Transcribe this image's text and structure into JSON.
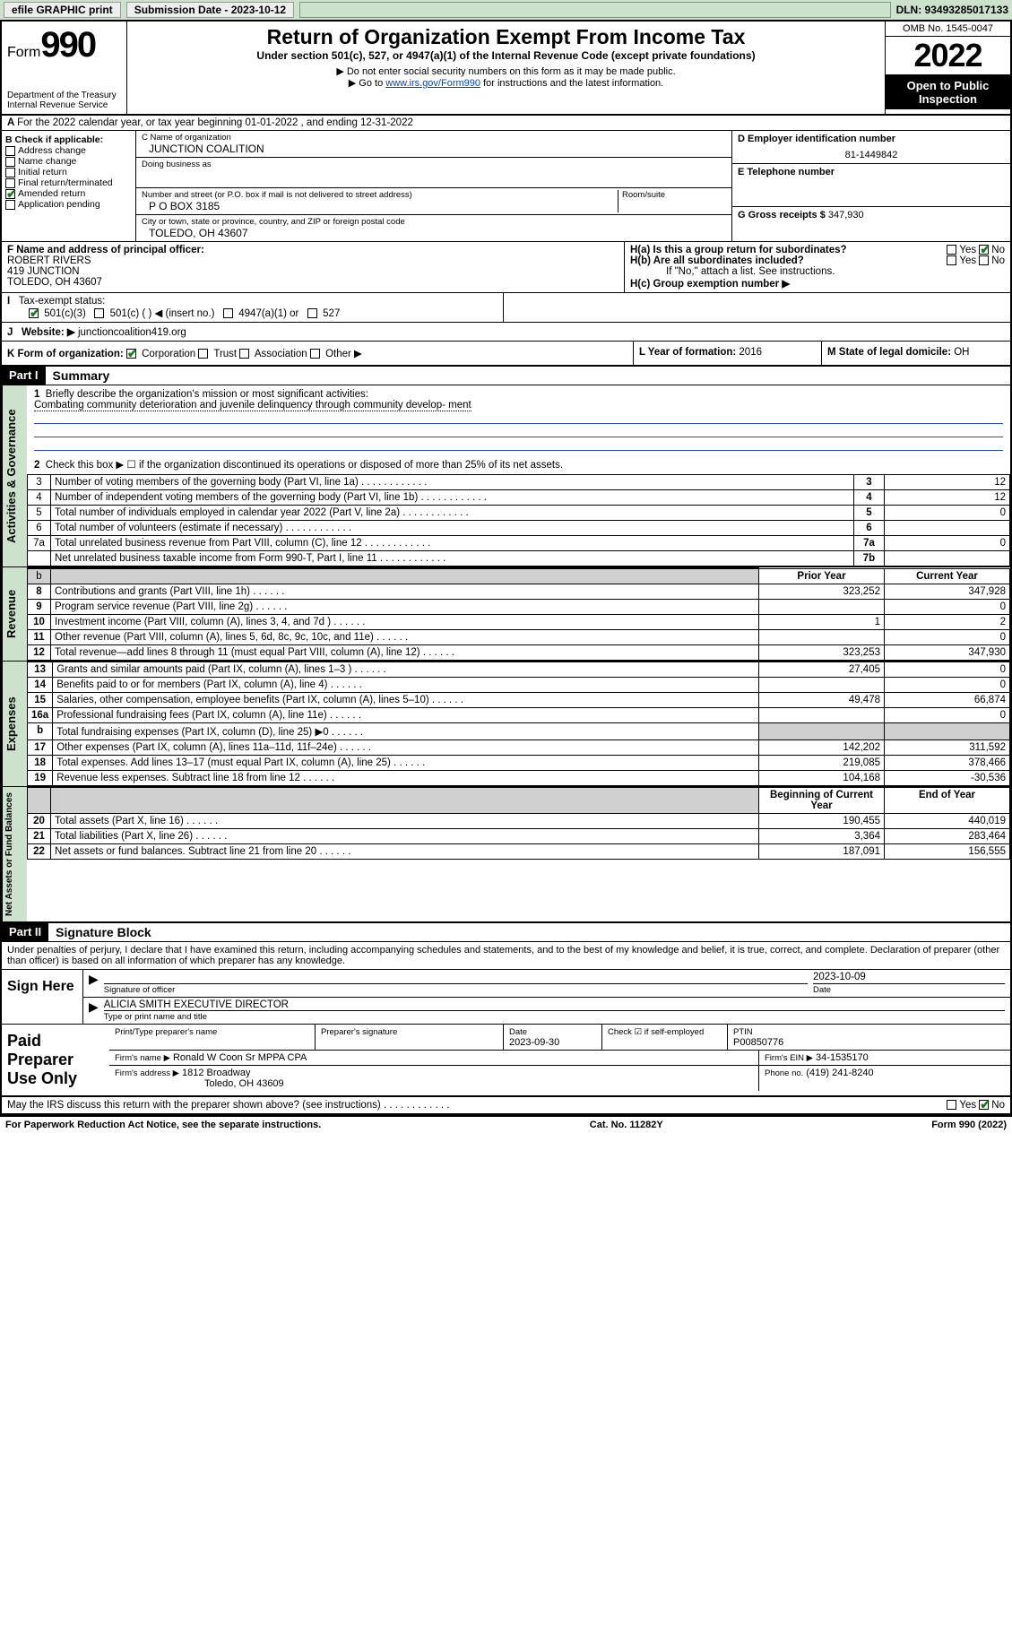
{
  "topbar": {
    "efile": "efile GRAPHIC print",
    "subdate_label": "Submission Date - 2023-10-12",
    "dln": "DLN: 93493285017133"
  },
  "header": {
    "form_word": "Form",
    "form_num": "990",
    "dept1": "Department of the Treasury",
    "dept2": "Internal Revenue Service",
    "title": "Return of Organization Exempt From Income Tax",
    "subtitle": "Under section 501(c), 527, or 4947(a)(1) of the Internal Revenue Code (except private foundations)",
    "instr1": "▶ Do not enter social security numbers on this form as it may be made public.",
    "instr2a": "▶ Go to ",
    "instr2_link": "www.irs.gov/Form990",
    "instr2b": " for instructions and the latest information.",
    "omb": "OMB No. 1545-0047",
    "year": "2022",
    "open": "Open to Public Inspection"
  },
  "A": {
    "text": "For the 2022 calendar year, or tax year beginning 01-01-2022  , and ending 12-31-2022"
  },
  "B": {
    "label": "B Check if applicable:",
    "items": [
      "Address change",
      "Name change",
      "Initial return",
      "Final return/terminated",
      "Amended return",
      "Application pending"
    ],
    "checked_idx": 4
  },
  "C": {
    "name_label": "C Name of organization",
    "name": "JUNCTION COALITION",
    "dba_label": "Doing business as",
    "dba": "",
    "street_label": "Number and street (or P.O. box if mail is not delivered to street address)",
    "room_label": "Room/suite",
    "street": "P O BOX 3185",
    "city_label": "City or town, state or province, country, and ZIP or foreign postal code",
    "city": "TOLEDO, OH  43607"
  },
  "D": {
    "label": "D Employer identification number",
    "val": "81-1449842"
  },
  "E": {
    "label": "E Telephone number",
    "val": ""
  },
  "G": {
    "label": "G Gross receipts $",
    "val": "347,930"
  },
  "F": {
    "label": "F Name and address of principal officer:",
    "l1": "ROBERT RIVERS",
    "l2": "419 JUNCTION",
    "l3": "TOLEDO, OH  43607"
  },
  "H": {
    "a": "H(a)  Is this a group return for subordinates?",
    "a_no": true,
    "b": "H(b)  Are all subordinates included?",
    "b_note": "If \"No,\" attach a list. See instructions.",
    "c": "H(c)  Group exemption number ▶"
  },
  "I": {
    "label": "Tax-exempt status:",
    "opts": [
      "501(c)(3)",
      "501(c) (  ) ◀ (insert no.)",
      "4947(a)(1) or",
      "527"
    ],
    "checked_idx": 0
  },
  "J": {
    "label": "Website: ▶",
    "val": "junctioncoalition419.org"
  },
  "K": {
    "label": "K Form of organization:",
    "opts": [
      "Corporation",
      "Trust",
      "Association",
      "Other ▶"
    ],
    "checked_idx": 0
  },
  "L": {
    "label": "L Year of formation: ",
    "val": "2016"
  },
  "M": {
    "label": "M State of legal domicile: ",
    "val": "OH"
  },
  "partI": {
    "hdr": "Part I",
    "title": "Summary",
    "q1": "Briefly describe the organization's mission or most significant activities:",
    "mission": "Combating community deterioration and juvenile delinquency through community develop- ment",
    "q2": "Check this box ▶ ☐  if the organization discontinued its operations or disposed of more than 25% of its net assets.",
    "side_gov": "Activities & Governance",
    "side_rev": "Revenue",
    "side_exp": "Expenses",
    "side_net": "Net Assets or Fund Balances",
    "col_prior": "Prior Year",
    "col_curr": "Current Year",
    "col_beg": "Beginning of Current Year",
    "col_end": "End of Year",
    "rows_gov": [
      {
        "n": "3",
        "d": "Number of voting members of the governing body (Part VI, line 1a)",
        "rn": "3",
        "v": "12"
      },
      {
        "n": "4",
        "d": "Number of independent voting members of the governing body (Part VI, line 1b)",
        "rn": "4",
        "v": "12"
      },
      {
        "n": "5",
        "d": "Total number of individuals employed in calendar year 2022 (Part V, line 2a)",
        "rn": "5",
        "v": "0"
      },
      {
        "n": "6",
        "d": "Total number of volunteers (estimate if necessary)",
        "rn": "6",
        "v": ""
      },
      {
        "n": "7a",
        "d": "Total unrelated business revenue from Part VIII, column (C), line 12",
        "rn": "7a",
        "v": "0"
      },
      {
        "n": "",
        "d": "Net unrelated business taxable income from Form 990-T, Part I, line 11",
        "rn": "7b",
        "v": ""
      }
    ],
    "rows_rev": [
      {
        "n": "8",
        "d": "Contributions and grants (Part VIII, line 1h)",
        "p": "323,252",
        "c": "347,928"
      },
      {
        "n": "9",
        "d": "Program service revenue (Part VIII, line 2g)",
        "p": "",
        "c": "0"
      },
      {
        "n": "10",
        "d": "Investment income (Part VIII, column (A), lines 3, 4, and 7d )",
        "p": "1",
        "c": "2"
      },
      {
        "n": "11",
        "d": "Other revenue (Part VIII, column (A), lines 5, 6d, 8c, 9c, 10c, and 11e)",
        "p": "",
        "c": "0"
      },
      {
        "n": "12",
        "d": "Total revenue—add lines 8 through 11 (must equal Part VIII, column (A), line 12)",
        "p": "323,253",
        "c": "347,930"
      }
    ],
    "rows_exp": [
      {
        "n": "13",
        "d": "Grants and similar amounts paid (Part IX, column (A), lines 1–3 )",
        "p": "27,405",
        "c": "0"
      },
      {
        "n": "14",
        "d": "Benefits paid to or for members (Part IX, column (A), line 4)",
        "p": "",
        "c": "0"
      },
      {
        "n": "15",
        "d": "Salaries, other compensation, employee benefits (Part IX, column (A), lines 5–10)",
        "p": "49,478",
        "c": "66,874"
      },
      {
        "n": "16a",
        "d": "Professional fundraising fees (Part IX, column (A), line 11e)",
        "p": "",
        "c": "0"
      },
      {
        "n": "b",
        "d": "Total fundraising expenses (Part IX, column (D), line 25) ▶0",
        "p": "__GREY__",
        "c": "__GREY__"
      },
      {
        "n": "17",
        "d": "Other expenses (Part IX, column (A), lines 11a–11d, 11f–24e)",
        "p": "142,202",
        "c": "311,592"
      },
      {
        "n": "18",
        "d": "Total expenses. Add lines 13–17 (must equal Part IX, column (A), line 25)",
        "p": "219,085",
        "c": "378,466"
      },
      {
        "n": "19",
        "d": "Revenue less expenses. Subtract line 18 from line 12",
        "p": "104,168",
        "c": "-30,536"
      }
    ],
    "rows_net": [
      {
        "n": "20",
        "d": "Total assets (Part X, line 16)",
        "p": "190,455",
        "c": "440,019"
      },
      {
        "n": "21",
        "d": "Total liabilities (Part X, line 26)",
        "p": "3,364",
        "c": "283,464"
      },
      {
        "n": "22",
        "d": "Net assets or fund balances. Subtract line 21 from line 20",
        "p": "187,091",
        "c": "156,555"
      }
    ]
  },
  "partII": {
    "hdr": "Part II",
    "title": "Signature Block",
    "jurat": "Under penalties of perjury, I declare that I have examined this return, including accompanying schedules and statements, and to the best of my knowledge and belief, it is true, correct, and complete. Declaration of preparer (other than officer) is based on all information of which preparer has any knowledge.",
    "sign_here": "Sign Here",
    "sig_officer": "Signature of officer",
    "sig_date": "Date",
    "sig_date_val": "2023-10-09",
    "name_title": "ALICIA SMITH  EXECUTIVE DIRECTOR",
    "name_title_label": "Type or print name and title",
    "paid": "Paid Preparer Use Only",
    "prep_name_label": "Print/Type preparer's name",
    "prep_sig_label": "Preparer's signature",
    "prep_date_label": "Date",
    "prep_date": "2023-09-30",
    "prep_self": "Check ☑ if self-employed",
    "ptin_label": "PTIN",
    "ptin": "P00850776",
    "firm_name_label": "Firm's name    ▶",
    "firm_name": "Ronald W Coon Sr MPPA CPA",
    "firm_ein_label": "Firm's EIN ▶",
    "firm_ein": "34-1535170",
    "firm_addr_label": "Firm's address ▶",
    "firm_addr1": "1812 Broadway",
    "firm_addr2": "Toledo, OH  43609",
    "phone_label": "Phone no.",
    "phone": "(419) 241-8240",
    "may_irs": "May the IRS discuss this return with the preparer shown above? (see instructions)",
    "may_no": true
  },
  "footer": {
    "pra": "For Paperwork Reduction Act Notice, see the separate instructions.",
    "cat": "Cat. No. 11282Y",
    "form": "Form 990 (2022)"
  },
  "colors": {
    "green_bg": "#cde2cd",
    "link": "#0645ad",
    "rule_blue": "#2a4fb0"
  }
}
